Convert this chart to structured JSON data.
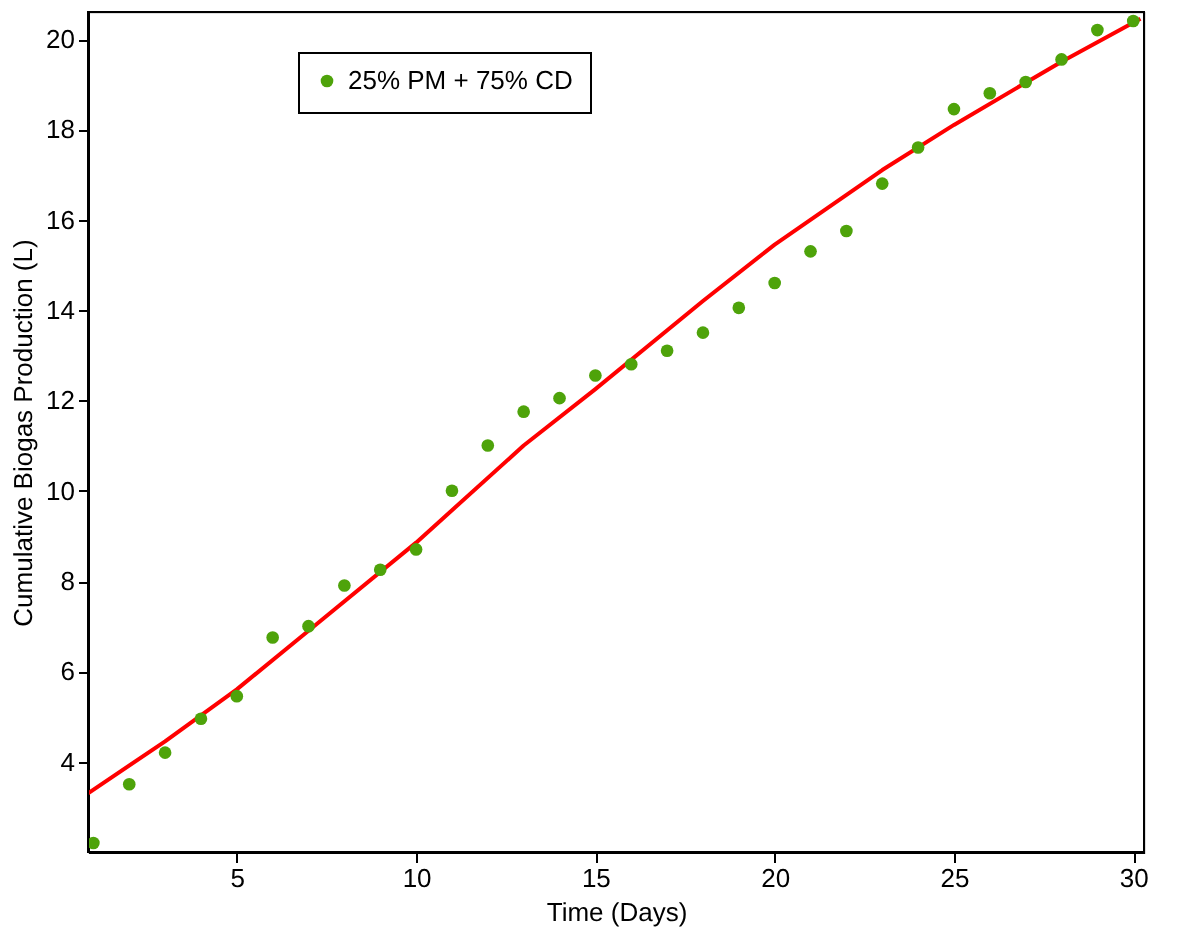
{
  "chart_data": {
    "type": "scatter",
    "xlabel": "Time (Days)",
    "ylabel": "Cumulative Biogas Production (L)",
    "xlim": [
      0.85,
      30.3
    ],
    "ylim": [
      2,
      20.6
    ],
    "xticks": [
      5,
      10,
      15,
      20,
      25,
      30
    ],
    "yticks": [
      4,
      6,
      8,
      10,
      12,
      14,
      16,
      18,
      20
    ],
    "grid": false,
    "legend": "top left",
    "series": [
      {
        "name": "25% PM + 75% CD",
        "color": "#4ea30a",
        "marker": "circle",
        "x": [
          1,
          2,
          3,
          4,
          5,
          6,
          7,
          8,
          9,
          10,
          11,
          12,
          13,
          14,
          15,
          16,
          17,
          18,
          19,
          20,
          21,
          22,
          23,
          24,
          25,
          26,
          27,
          28,
          29,
          30
        ],
        "values": [
          2.2,
          3.5,
          4.2,
          4.95,
          5.45,
          6.75,
          7.0,
          7.9,
          8.25,
          8.7,
          10.0,
          11.0,
          11.75,
          12.05,
          12.55,
          12.8,
          13.1,
          13.5,
          14.05,
          14.6,
          15.3,
          15.75,
          16.8,
          17.6,
          18.45,
          18.8,
          19.05,
          19.55,
          20.2,
          20.4
        ]
      },
      {
        "color": "#ff0000",
        "type": "line",
        "marker": "none",
        "line_style": "solid",
        "x": [
          0.85,
          3,
          5,
          7,
          10,
          13,
          15,
          18,
          20,
          23,
          25,
          28,
          30.2
        ],
        "values": [
          3.3,
          4.45,
          5.6,
          6.9,
          8.85,
          11.0,
          12.25,
          14.2,
          15.45,
          17.1,
          18.1,
          19.5,
          20.45
        ]
      }
    ]
  }
}
